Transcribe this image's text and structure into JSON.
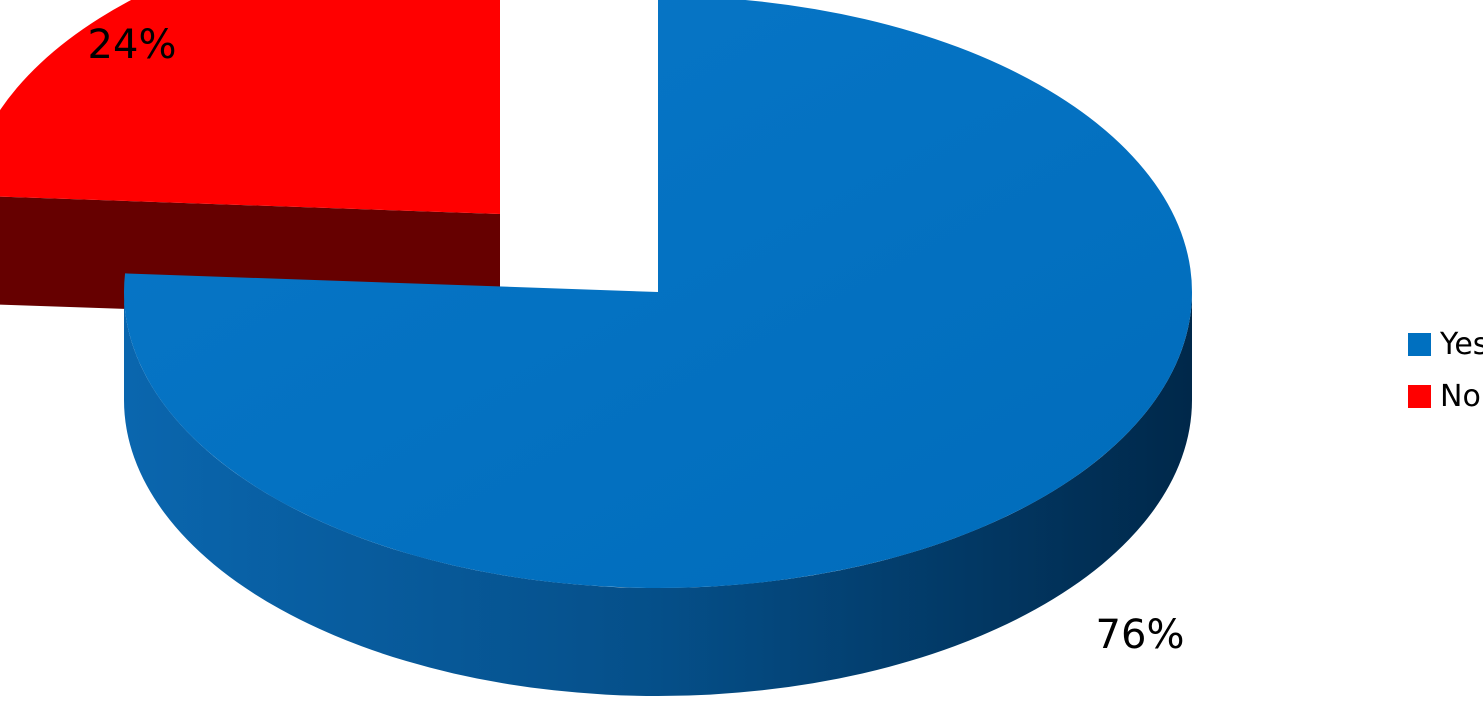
{
  "chart_data": {
    "type": "pie",
    "style": "3d-exploded",
    "title": "",
    "slices": [
      {
        "label": "Yes",
        "value": 76,
        "display": "76%",
        "color": "#0070C0",
        "sideDark": "#00284a"
      },
      {
        "label": "No",
        "value": 24,
        "display": "24%",
        "color": "#FF0000",
        "sideDark": "#660000"
      }
    ],
    "legend": {
      "position": "right",
      "entries": [
        {
          "label": "Yes",
          "color": "#0070C0"
        },
        {
          "label": "No",
          "color": "#FF0000"
        }
      ]
    }
  }
}
